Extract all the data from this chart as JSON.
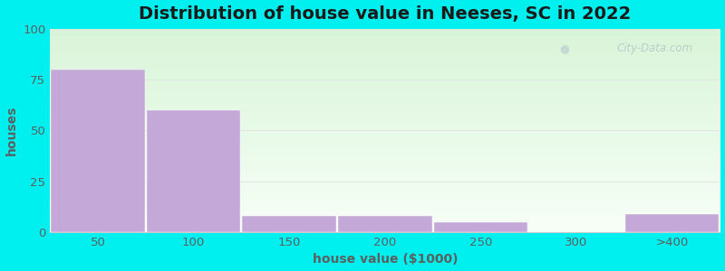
{
  "title": "Distribution of house value in Neeses, SC in 2022",
  "xlabel": "house value ($1000)",
  "ylabel": "houses",
  "categories": [
    "50",
    "100",
    "150",
    "200",
    "250",
    "300",
    ">400"
  ],
  "values": [
    80,
    60,
    8,
    8,
    5,
    0,
    9
  ],
  "bar_color": "#c4a8d8",
  "ylim": [
    0,
    100
  ],
  "yticks": [
    0,
    25,
    50,
    75,
    100
  ],
  "outer_bg": "#00f0f0",
  "title_fontsize": 14,
  "label_fontsize": 10,
  "tick_color": "#5a6060",
  "title_color": "#1a1a1a",
  "watermark": "City-Data.com",
  "bg_grad_top": "#dff0dd",
  "bg_grad_bottom": "#f8fff8",
  "grid_color": "#e0e8e0"
}
